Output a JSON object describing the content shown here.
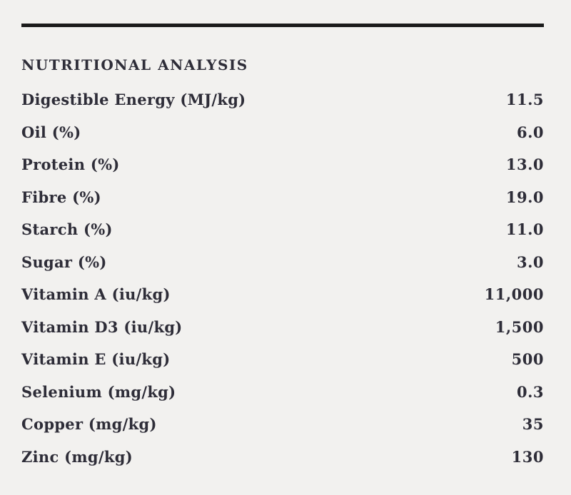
{
  "page": {
    "background_color": "#f2f1ef",
    "text_color": "#2e2d38",
    "rule_color": "#1b1b1b"
  },
  "section": {
    "title": "NUTRITIONAL ANALYSIS"
  },
  "table": {
    "rows": [
      {
        "label": "Digestible Energy (MJ/kg)",
        "value": "11.5"
      },
      {
        "label": "Oil (%)",
        "value": "6.0"
      },
      {
        "label": "Protein (%)",
        "value": "13.0"
      },
      {
        "label": "Fibre (%)",
        "value": "19.0"
      },
      {
        "label": "Starch (%)",
        "value": "11.0"
      },
      {
        "label": "Sugar (%)",
        "value": "3.0"
      },
      {
        "label": "Vitamin A (iu/kg)",
        "value": "11,000"
      },
      {
        "label": "Vitamin D3 (iu/kg)",
        "value": "1,500"
      },
      {
        "label": "Vitamin E (iu/kg)",
        "value": "500"
      },
      {
        "label": "Selenium (mg/kg)",
        "value": "0.3"
      },
      {
        "label": "Copper (mg/kg)",
        "value": "35"
      },
      {
        "label": "Zinc (mg/kg)",
        "value": "130"
      }
    ]
  }
}
